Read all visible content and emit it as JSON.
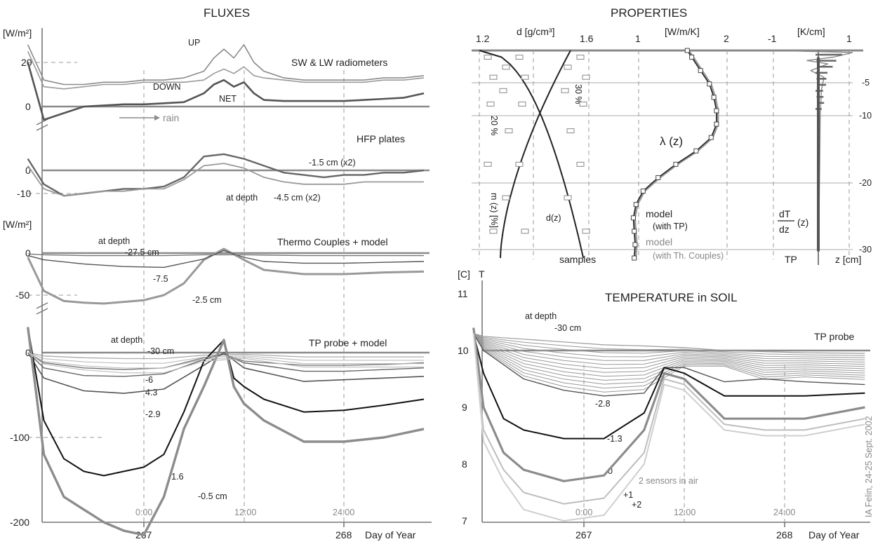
{
  "fluxes": {
    "title": "FLUXES",
    "unit_top": "[W/m²]",
    "unit_mid": "[W/m²]",
    "panel1": {
      "title": "SW & LW radiometers",
      "labels": {
        "down": "DOWN",
        "up": "UP",
        "net": "NET",
        "rain": "rain"
      },
      "yticks": [
        "20",
        "0"
      ],
      "series": [
        {
          "name": "UP",
          "x": [
            266.42,
            266.5,
            266.6,
            266.7,
            266.8,
            266.9,
            267.0,
            267.1,
            267.2,
            267.3,
            267.35,
            267.4,
            267.45,
            267.5,
            267.55,
            267.6,
            267.7,
            267.8,
            267.9,
            268.0,
            268.1,
            268.2,
            268.3,
            268.4
          ],
          "values": [
            28,
            12,
            10,
            10,
            11,
            11,
            12,
            12,
            13,
            16,
            22,
            26,
            22,
            28,
            20,
            16,
            13,
            12,
            12,
            12,
            12,
            13,
            13,
            14
          ]
        },
        {
          "name": "DOWN",
          "x": [
            266.42,
            266.5,
            266.6,
            266.7,
            266.8,
            266.9,
            267.0,
            267.1,
            267.2,
            267.3,
            267.35,
            267.4,
            267.45,
            267.5,
            267.55,
            267.6,
            267.7,
            267.8,
            267.9,
            268.0,
            268.1,
            268.2,
            268.3,
            268.4
          ],
          "values": [
            25,
            9,
            8,
            9,
            10,
            10,
            11,
            11,
            11,
            12,
            15,
            17,
            15,
            18,
            14,
            13,
            12,
            11,
            11,
            11,
            11,
            12,
            12,
            13
          ]
        },
        {
          "name": "NET",
          "x": [
            266.42,
            266.5,
            266.6,
            266.7,
            266.8,
            266.9,
            267.0,
            267.1,
            267.2,
            267.3,
            267.35,
            267.4,
            267.45,
            267.5,
            267.55,
            267.6,
            267.7,
            267.8,
            267.9,
            268.0,
            268.1,
            268.2,
            268.3,
            268.4
          ],
          "values": [
            20,
            -6,
            -3,
            0,
            0.5,
            1,
            1,
            1.5,
            2,
            6,
            10,
            12,
            9,
            11,
            6,
            3,
            2.5,
            2.5,
            2.5,
            2.5,
            3,
            3.5,
            4,
            6
          ]
        }
      ]
    },
    "panel2": {
      "title": "HFP plates",
      "yticks": [
        "0",
        "-10"
      ],
      "labels": {
        "upper": "-1.5 cm (x2)",
        "depth": "at depth",
        "lower": "-4.5 cm (x2)"
      },
      "series": [
        {
          "name": "-1.5 cm (x2)",
          "x": [
            266.42,
            266.5,
            266.6,
            266.7,
            266.8,
            266.9,
            267.0,
            267.1,
            267.2,
            267.3,
            267.4,
            267.5,
            267.6,
            267.7,
            267.8,
            267.9,
            268.0,
            268.1,
            268.2,
            268.3,
            268.4
          ],
          "values": [
            5,
            -6,
            -11,
            -10,
            -9,
            -8,
            -8,
            -7,
            -3,
            6,
            7,
            5,
            2,
            -1,
            -2,
            -3,
            -2,
            -2,
            -1,
            -1,
            0
          ]
        },
        {
          "name": "-4.5 cm (x2)",
          "x": [
            266.42,
            266.5,
            266.6,
            266.7,
            266.8,
            266.9,
            267.0,
            267.1,
            267.2,
            267.3,
            267.4,
            267.5,
            267.6,
            267.7,
            267.8,
            267.9,
            268.0,
            268.1,
            268.2,
            268.3,
            268.4
          ],
          "values": [
            2,
            -8,
            -11,
            -10,
            -9,
            -9,
            -8,
            -8,
            -4,
            2,
            3,
            1,
            -3,
            -5,
            -6,
            -6,
            -6,
            -5,
            -5,
            -5,
            -5
          ]
        }
      ]
    },
    "panel3": {
      "title": "Thermo Couples + model",
      "yticks": [
        "0",
        "-50"
      ],
      "labels": {
        "depth": "at depth",
        "d1": "-27.5 cm",
        "d2": "-7.5",
        "d3": "-2.5 cm"
      },
      "series": [
        {
          "name": "-2.5 cm",
          "x": [
            266.42,
            266.5,
            266.6,
            266.7,
            266.8,
            266.9,
            267.0,
            267.1,
            267.2,
            267.3,
            267.4,
            267.5,
            267.6,
            267.8,
            268.0,
            268.2,
            268.4
          ],
          "values": [
            -5,
            -45,
            -57,
            -59,
            -60,
            -58,
            -56,
            -50,
            -36,
            -8,
            5,
            -8,
            -20,
            -25,
            -25,
            -23,
            -22
          ]
        },
        {
          "name": "-7.5",
          "x": [
            266.42,
            266.5,
            266.7,
            266.9,
            267.1,
            267.3,
            267.4,
            267.5,
            267.6,
            267.8,
            268.0,
            268.2,
            268.4
          ],
          "values": [
            -3,
            -8,
            -13,
            -16,
            -17,
            -7,
            3,
            -5,
            -10,
            -12,
            -12,
            -11,
            -10
          ]
        },
        {
          "name": "-27.5 cm",
          "x": [
            266.42,
            266.5,
            266.7,
            266.9,
            267.1,
            267.3,
            267.5,
            267.8,
            268.0,
            268.2,
            268.4
          ],
          "values": [
            -1,
            -2,
            -3,
            -3,
            -3,
            -2,
            -2,
            -3,
            -3,
            -3,
            -3
          ]
        }
      ]
    },
    "panel4": {
      "title": "TP probe + model",
      "yticks": [
        "0",
        "-100",
        "-200"
      ],
      "labels": {
        "depth": "at depth",
        "d1": "-30 cm",
        "d2": "-6",
        "d3": "4.3",
        "d4": "-2.9",
        "d5": "-1.6",
        "d6": "-0.5 cm"
      },
      "series": [
        {
          "name": "-30 cm",
          "x": [
            266.42,
            266.5,
            266.7,
            266.9,
            267.1,
            267.3,
            267.5,
            267.8,
            268.0,
            268.2,
            268.4
          ],
          "values": [
            0,
            -4,
            -6,
            -7,
            -7,
            -3,
            -2,
            -5,
            -5,
            -5,
            -5
          ]
        },
        {
          "name": "-6",
          "x": [
            266.42,
            266.5,
            266.7,
            266.9,
            267.1,
            267.3,
            267.4,
            267.5,
            267.8,
            268.0,
            268.2,
            268.4
          ],
          "values": [
            0,
            -12,
            -18,
            -20,
            -18,
            -6,
            -2,
            -10,
            -15,
            -15,
            -14,
            -12
          ]
        },
        {
          "name": "4.3",
          "x": [
            266.42,
            266.5,
            266.7,
            266.9,
            267.1,
            267.3,
            267.4,
            267.5,
            267.8,
            268.0,
            268.2,
            268.4
          ],
          "values": [
            0,
            -18,
            -27,
            -28,
            -25,
            -8,
            -2,
            -12,
            -22,
            -22,
            -20,
            -18
          ]
        },
        {
          "name": "-2.9",
          "x": [
            266.42,
            266.5,
            266.7,
            266.9,
            267.1,
            267.3,
            267.4,
            267.5,
            267.8,
            268.0,
            268.2,
            268.4
          ],
          "values": [
            0,
            -30,
            -45,
            -48,
            -43,
            -15,
            0,
            -18,
            -34,
            -32,
            -30,
            -28
          ]
        },
        {
          "name": "-1.6",
          "x": [
            266.42,
            266.5,
            266.6,
            266.7,
            266.8,
            266.9,
            267.0,
            267.1,
            267.2,
            267.3,
            267.4,
            267.45,
            267.5,
            267.6,
            267.8,
            268.0,
            268.2,
            268.4
          ],
          "values": [
            30,
            -80,
            -125,
            -140,
            -145,
            -140,
            -135,
            -120,
            -70,
            -10,
            15,
            -30,
            -40,
            -55,
            -70,
            -68,
            -62,
            -55
          ]
        },
        {
          "name": "-0.5 cm",
          "x": [
            266.42,
            266.5,
            266.6,
            266.7,
            266.8,
            266.9,
            267.0,
            267.1,
            267.2,
            267.3,
            267.4,
            267.45,
            267.5,
            267.6,
            267.8,
            268.0,
            268.2,
            268.4
          ],
          "values": [
            30,
            -120,
            -170,
            -185,
            -200,
            -210,
            -215,
            -170,
            -90,
            -40,
            15,
            -40,
            -60,
            -80,
            -105,
            -105,
            -100,
            -90
          ]
        }
      ]
    },
    "x_axis": {
      "ticks": [
        "267",
        "268"
      ],
      "time_labels": [
        "0:00",
        "12:00",
        "24:00"
      ],
      "label": "Day of Year"
    }
  },
  "properties": {
    "title": "PROPERTIES",
    "density": {
      "top_label": "d [g/cm³]",
      "ticks": [
        "1.2",
        "1.6"
      ],
      "pct_left": "20 %",
      "pct_right": "30 %",
      "mv_label": "m (z) [%]",
      "mv_sub": "v",
      "dz_label": "d(z)",
      "samples_label": "samples"
    },
    "conductivity": {
      "top_label": "[W/m/K]",
      "ticks": [
        "1",
        "2"
      ],
      "curve_label": "λ (z)",
      "model_tp": "model",
      "model_tp_sub": "(with TP)",
      "model_tc": "model",
      "model_tc_sub": "(with Th. Couples)"
    },
    "gradient": {
      "top_label": "[K/cm]",
      "ticks": [
        "-1",
        "1"
      ],
      "dtdz_num": "dT",
      "dtdz_den": "dz",
      "dtdz_z": "(z)",
      "tp_label": "TP",
      "z_label": "z [cm]",
      "z_ticks": [
        "-5",
        "-10",
        "-20",
        "-30"
      ]
    }
  },
  "temperature": {
    "title": "TEMPERATURE in SOIL",
    "unit": "[C]",
    "t_label": "T",
    "probe_label": "TP probe",
    "yticks": [
      "11",
      "10",
      "9",
      "8",
      "7"
    ],
    "labels": {
      "depth": "at depth",
      "d1": "-30 cm",
      "d2": "-2.8",
      "d3": "-1.3",
      "d4": "0",
      "d5": "+1",
      "d6": "+2",
      "air": "2 sensors in air"
    },
    "credit": "IA Felin, 24-25 Sept. 2002",
    "x_ticks": [
      "267",
      "268"
    ],
    "time_labels": [
      "0:00",
      "12:00",
      "24:00"
    ],
    "x_label": "Day of Year",
    "series": [
      {
        "name": "-30 cm",
        "x": [
          266.45,
          266.5,
          266.7,
          266.9,
          267.1,
          267.3,
          267.5,
          267.7,
          267.9,
          268.1,
          268.4
        ],
        "values": [
          10.3,
          10.25,
          10.2,
          10.15,
          10.1,
          10.08,
          10.05,
          10.0,
          9.98,
          9.96,
          9.95
        ]
      },
      {
        "name": "-2.8",
        "x": [
          266.45,
          266.5,
          266.7,
          266.9,
          267.1,
          267.3,
          267.4,
          267.5,
          267.7,
          267.9,
          268.1,
          268.4
        ],
        "values": [
          10.3,
          10.0,
          9.5,
          9.3,
          9.2,
          9.25,
          9.7,
          9.7,
          9.45,
          9.5,
          9.45,
          9.4
        ]
      },
      {
        "name": "-1.3",
        "x": [
          266.45,
          266.5,
          266.6,
          266.7,
          266.9,
          267.1,
          267.3,
          267.4,
          267.5,
          267.7,
          267.9,
          268.1,
          268.4
        ],
        "values": [
          10.3,
          9.6,
          8.8,
          8.6,
          8.45,
          8.45,
          8.9,
          9.7,
          9.6,
          9.2,
          9.2,
          9.2,
          9.25
        ]
      },
      {
        "name": "0",
        "x": [
          266.45,
          266.5,
          266.6,
          266.7,
          266.9,
          267.1,
          267.3,
          267.4,
          267.5,
          267.7,
          267.9,
          268.1,
          268.4
        ],
        "values": [
          10.4,
          9.0,
          8.2,
          7.9,
          7.7,
          7.8,
          8.6,
          9.6,
          9.5,
          8.8,
          8.8,
          8.8,
          9.0
        ]
      },
      {
        "name": "+1",
        "x": [
          266.45,
          266.5,
          266.6,
          266.7,
          266.9,
          267.1,
          267.3,
          267.4,
          267.5,
          267.7,
          267.9,
          268.1,
          268.4
        ],
        "values": [
          10.3,
          8.6,
          7.9,
          7.5,
          7.3,
          7.4,
          8.2,
          9.5,
          9.4,
          8.7,
          8.6,
          8.6,
          8.8
        ]
      },
      {
        "name": "+2",
        "x": [
          266.45,
          266.5,
          266.6,
          266.7,
          266.9,
          267.1,
          267.3,
          267.4,
          267.5,
          267.7,
          267.9,
          268.1,
          268.4
        ],
        "values": [
          10.3,
          8.4,
          7.7,
          7.2,
          7.0,
          7.1,
          8.0,
          9.4,
          9.3,
          8.6,
          8.5,
          8.5,
          8.7
        ]
      }
    ]
  },
  "chart_data": [
    {
      "type": "line",
      "title": "FLUXES – SW & LW radiometers",
      "ylabel": "[W/m²]",
      "xlabel": "Day of Year",
      "ylim": [
        -10,
        30
      ]
    },
    {
      "type": "line",
      "title": "FLUXES – HFP plates",
      "ylabel": "[W/m²]",
      "xlabel": "Day of Year",
      "ylim": [
        -12,
        8
      ]
    },
    {
      "type": "line",
      "title": "FLUXES – Thermo Couples + model",
      "ylabel": "[W/m²]",
      "xlabel": "Day of Year",
      "ylim": [
        -65,
        10
      ]
    },
    {
      "type": "line",
      "title": "FLUXES – TP probe + model",
      "ylabel": "[W/m²]",
      "xlabel": "Day of Year",
      "ylim": [
        -200,
        40
      ]
    },
    {
      "type": "line",
      "title": "TEMPERATURE in SOIL",
      "ylabel": "[C]",
      "xlabel": "Day of Year",
      "ylim": [
        7,
        11.3
      ]
    }
  ],
  "colors": {
    "axis": "#777777",
    "dark": "#222222",
    "mid": "#666666",
    "light": "#aaaaaa",
    "thick": "#8c8c8c"
  }
}
